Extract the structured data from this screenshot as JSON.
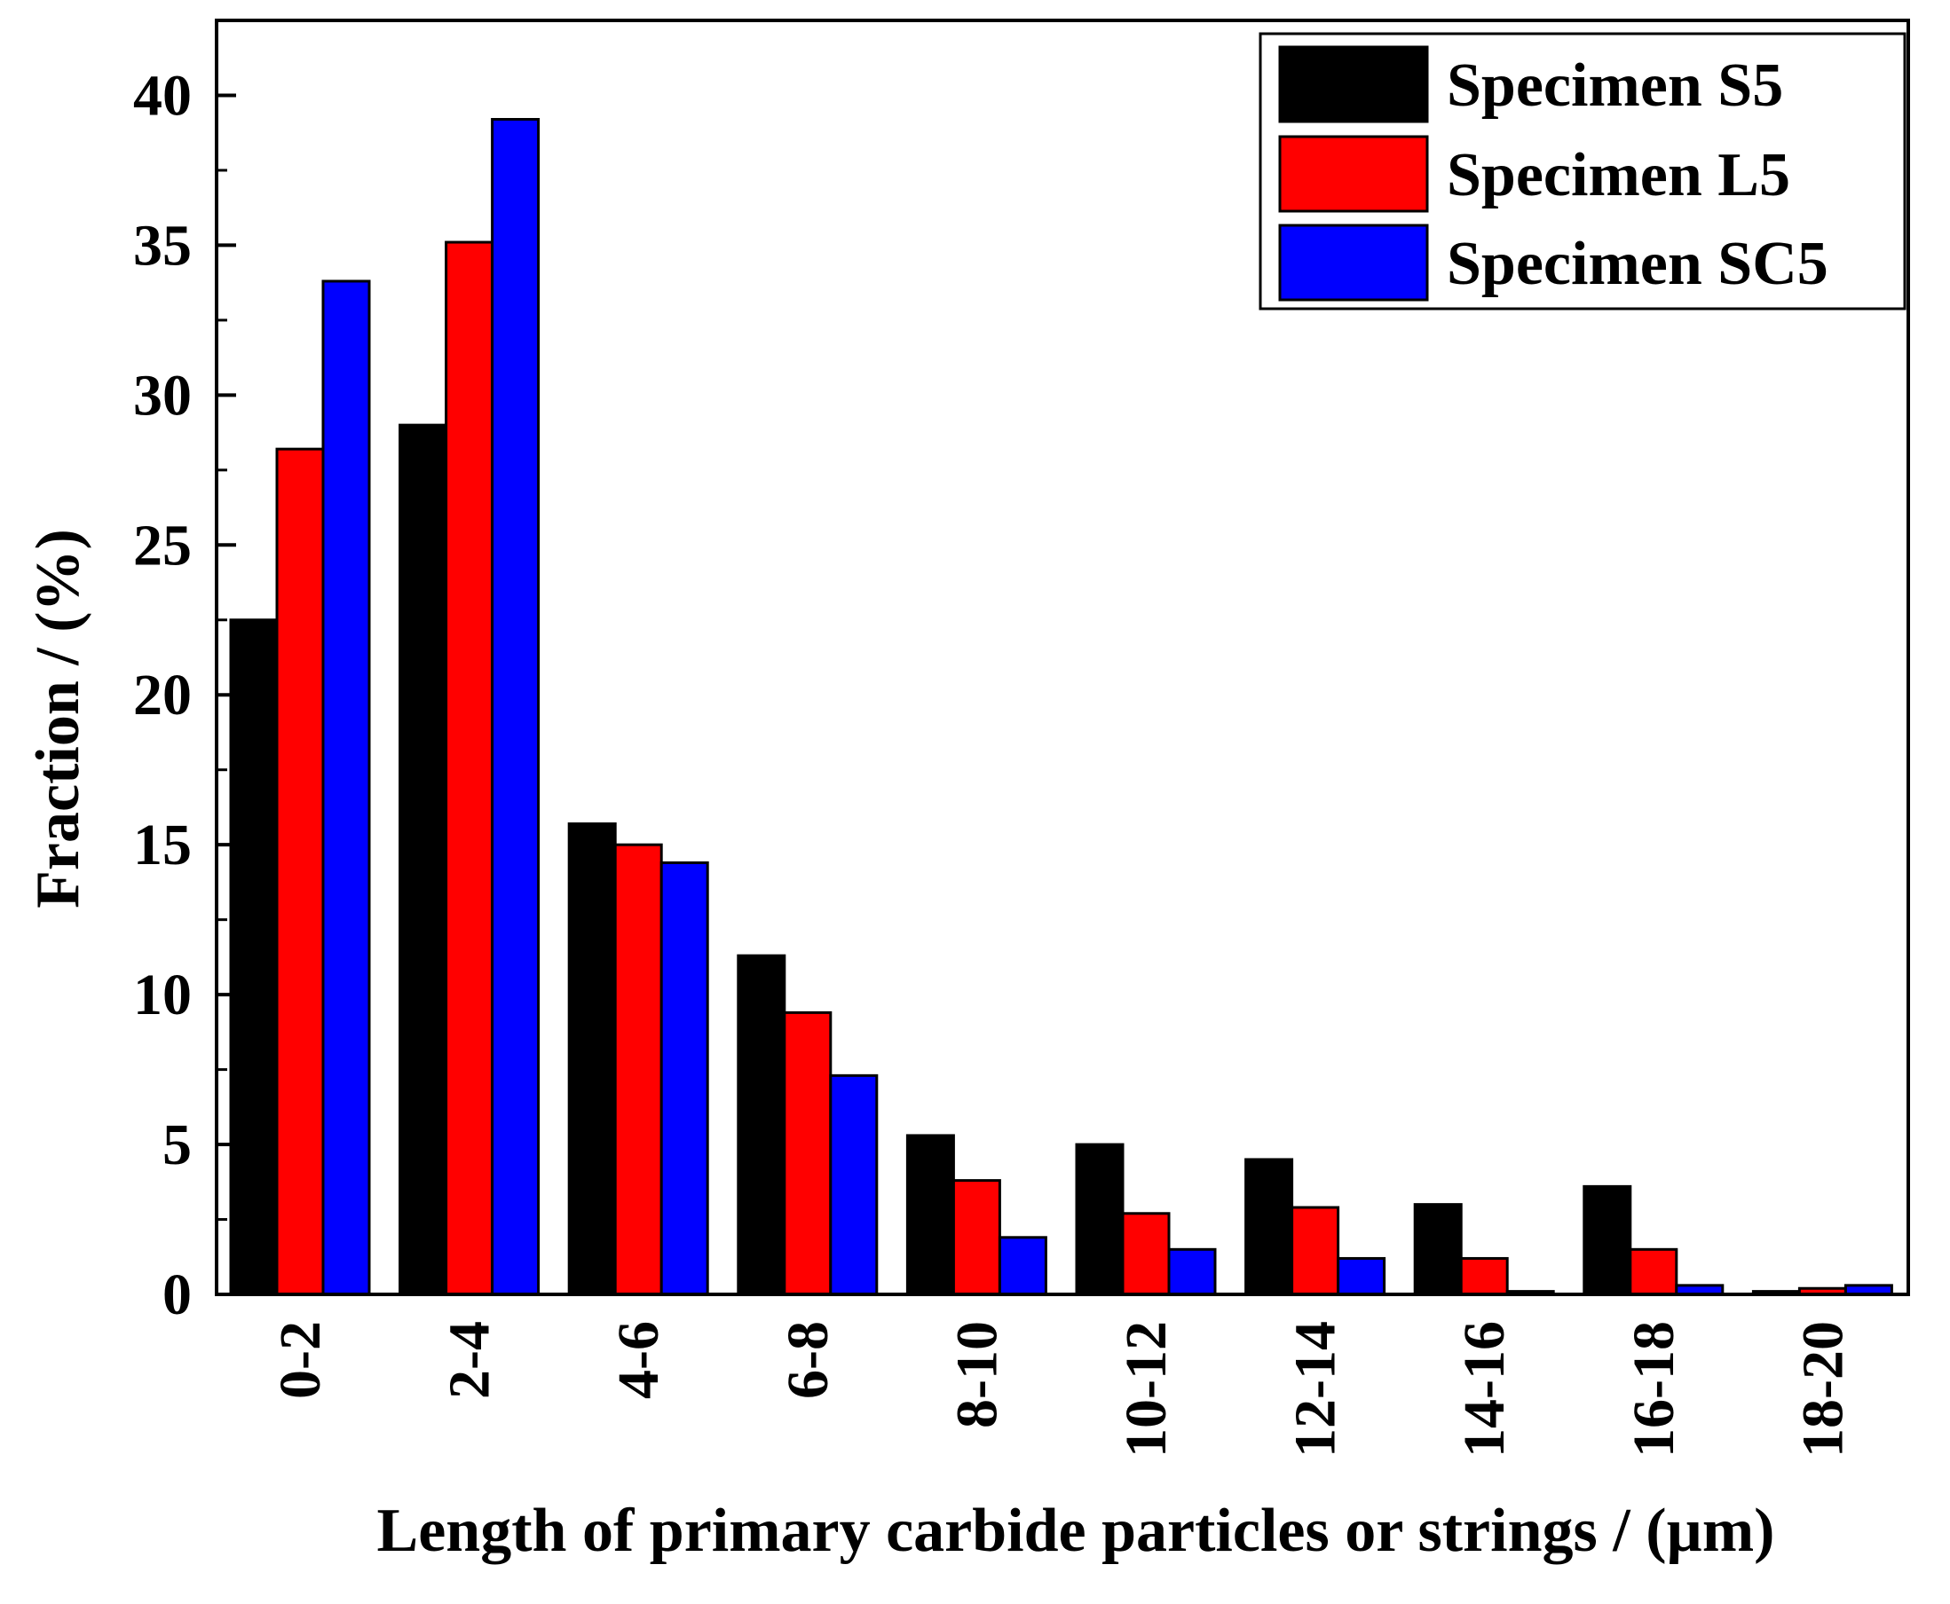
{
  "chart_data": {
    "type": "bar",
    "title": "",
    "xlabel": "Length of primary carbide particles or strings / (µm)",
    "ylabel": "Fraction / (%)",
    "ylim": [
      0,
      42.5
    ],
    "yticks": [
      0,
      5,
      10,
      15,
      20,
      25,
      30,
      35,
      40
    ],
    "legend_position": "top-right",
    "categories": [
      "0-2",
      "2-4",
      "4-6",
      "6-8",
      "8-10",
      "10-12",
      "12-14",
      "14-16",
      "16-18",
      "18-20"
    ],
    "series": [
      {
        "name": "Specimen S5",
        "color": "#000000",
        "values": [
          22.5,
          29.0,
          15.7,
          11.3,
          5.3,
          5.0,
          4.5,
          3.0,
          3.6,
          0.1
        ]
      },
      {
        "name": "Specimen L5",
        "color": "#ff0000",
        "values": [
          28.2,
          35.1,
          15.0,
          9.4,
          3.8,
          2.7,
          2.9,
          1.2,
          1.5,
          0.2
        ]
      },
      {
        "name": "Specimen SC5",
        "color": "#0000ff",
        "values": [
          33.8,
          39.2,
          14.4,
          7.3,
          1.9,
          1.5,
          1.2,
          0.1,
          0.3,
          0.3
        ]
      }
    ]
  }
}
